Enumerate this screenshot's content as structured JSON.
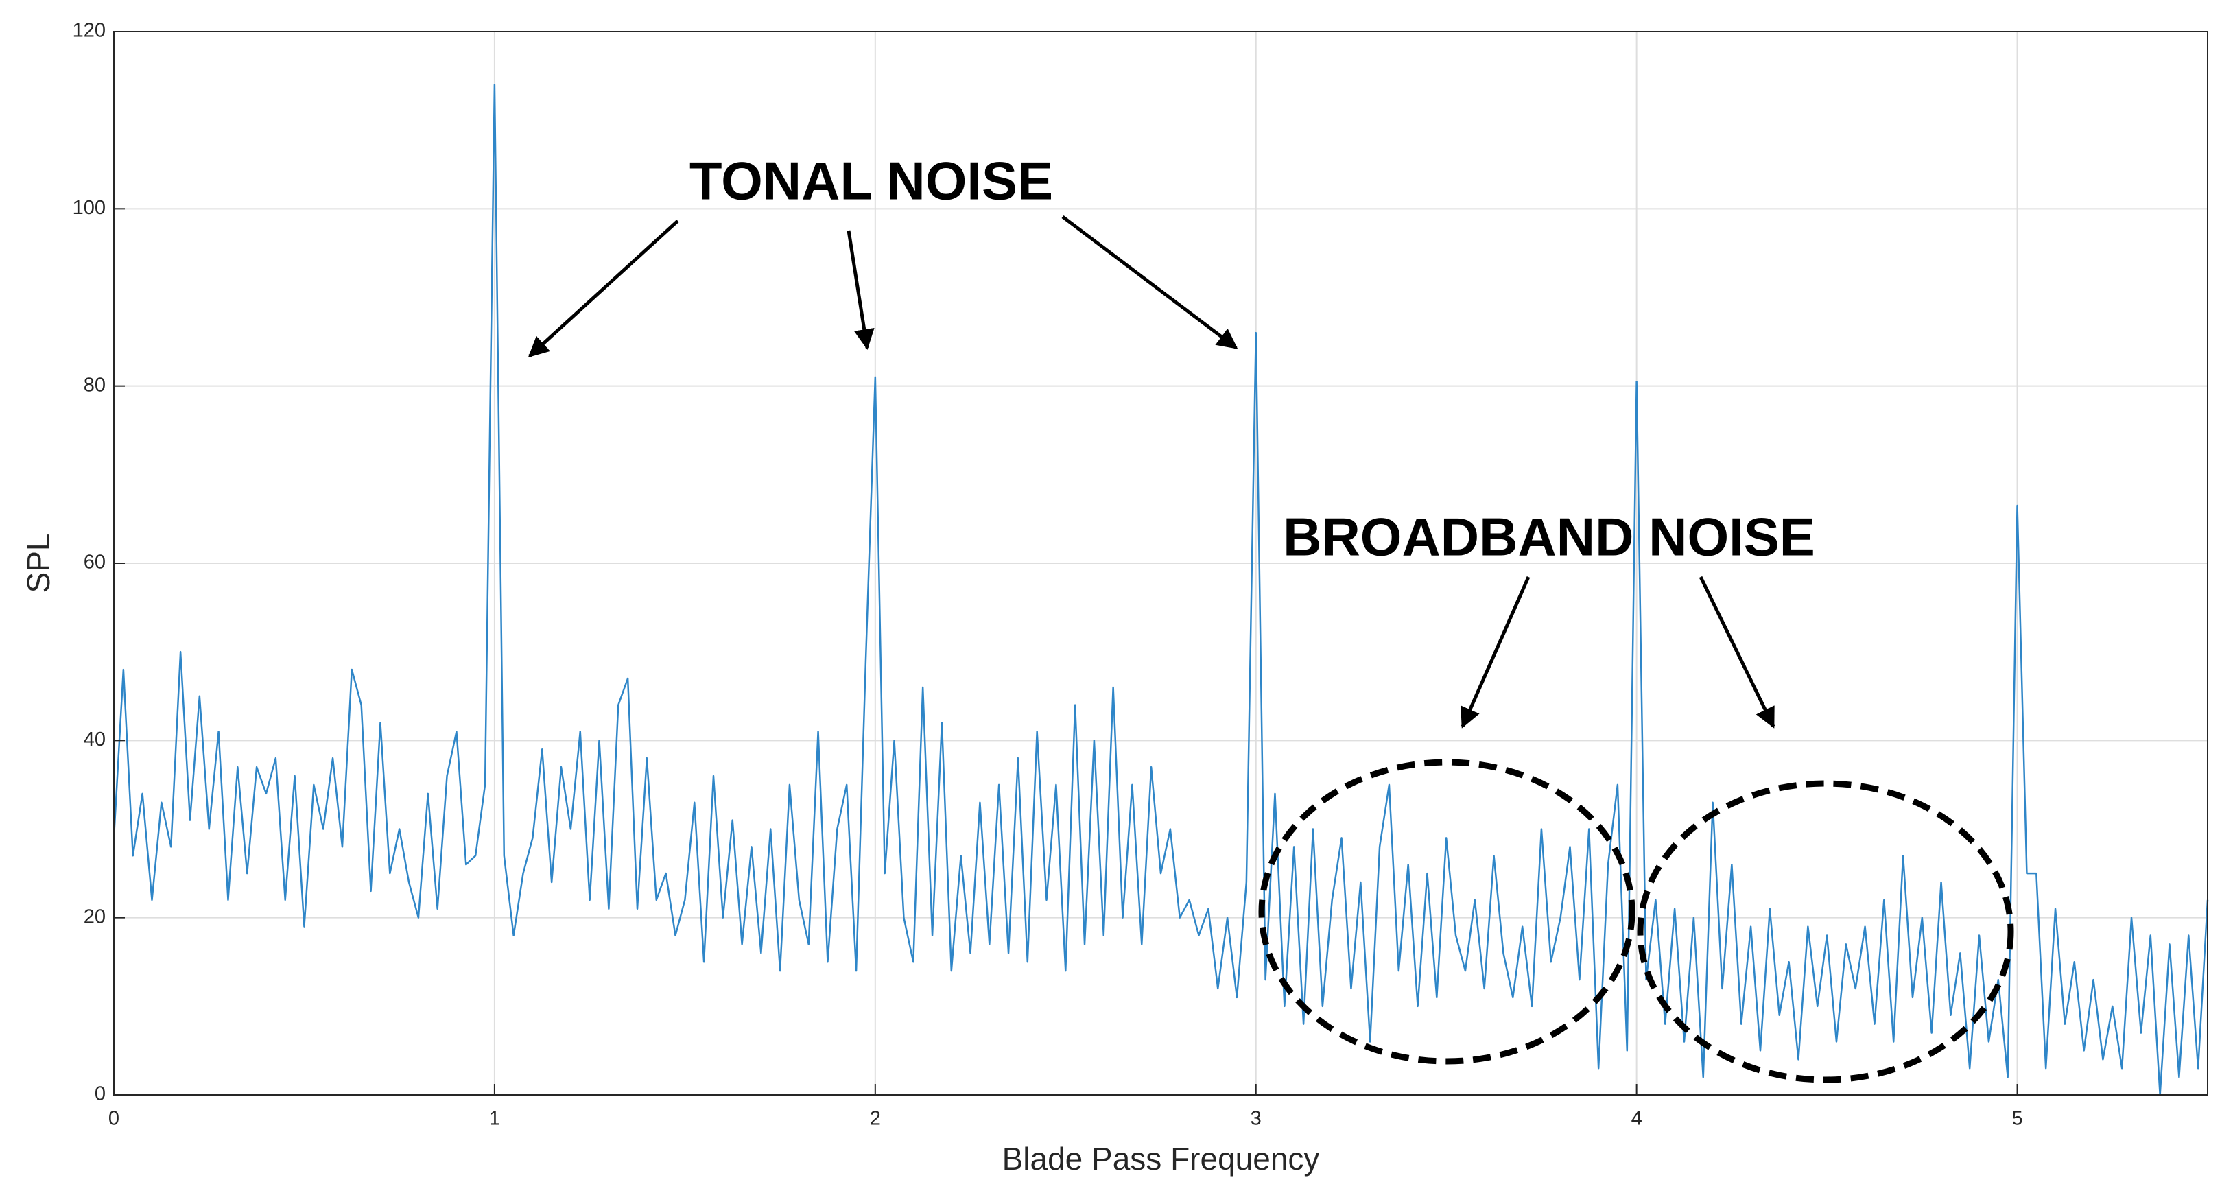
{
  "chart_data": {
    "type": "line",
    "x_label": "Blade Pass Frequency",
    "y_label": "SPL",
    "annotations": [
      "TONAL NOISE",
      "BROADBAND NOISE"
    ],
    "color": "#2f86c8",
    "grid": true,
    "xlim": [
      0,
      5.5
    ],
    "ylim": [
      0,
      120
    ],
    "xticks": [
      0,
      1,
      2,
      3,
      4,
      5
    ],
    "yticks": [
      0,
      20,
      40,
      60,
      80,
      100,
      120
    ],
    "x": [
      0,
      0.025,
      0.05,
      0.075,
      0.1,
      0.125,
      0.15,
      0.175,
      0.2,
      0.225,
      0.25,
      0.275,
      0.3,
      0.325,
      0.35,
      0.375,
      0.4,
      0.425,
      0.45,
      0.475,
      0.5,
      0.525,
      0.55,
      0.575,
      0.6,
      0.625,
      0.65,
      0.675,
      0.7,
      0.725,
      0.75,
      0.775,
      0.8,
      0.825,
      0.85,
      0.875,
      0.9,
      0.925,
      0.95,
      0.975,
      1,
      1.025,
      1.05,
      1.075,
      1.1,
      1.125,
      1.15,
      1.175,
      1.2,
      1.225,
      1.25,
      1.275,
      1.3,
      1.325,
      1.35,
      1.375,
      1.4,
      1.425,
      1.45,
      1.475,
      1.5,
      1.525,
      1.55,
      1.575,
      1.6,
      1.625,
      1.65,
      1.675,
      1.7,
      1.725,
      1.75,
      1.775,
      1.8,
      1.825,
      1.85,
      1.875,
      1.9,
      1.925,
      1.95,
      1.975,
      2,
      2.025,
      2.05,
      2.075,
      2.1,
      2.125,
      2.15,
      2.175,
      2.2,
      2.225,
      2.25,
      2.275,
      2.3,
      2.325,
      2.35,
      2.375,
      2.4,
      2.425,
      2.45,
      2.475,
      2.5,
      2.525,
      2.55,
      2.575,
      2.6,
      2.625,
      2.65,
      2.675,
      2.7,
      2.725,
      2.75,
      2.775,
      2.8,
      2.825,
      2.85,
      2.875,
      2.9,
      2.925,
      2.95,
      2.975,
      3,
      3.025,
      3.05,
      3.075,
      3.1,
      3.125,
      3.15,
      3.175,
      3.2,
      3.225,
      3.25,
      3.275,
      3.3,
      3.325,
      3.35,
      3.375,
      3.4,
      3.425,
      3.45,
      3.475,
      3.5,
      3.525,
      3.55,
      3.575,
      3.6,
      3.625,
      3.65,
      3.675,
      3.7,
      3.725,
      3.75,
      3.775,
      3.8,
      3.825,
      3.85,
      3.875,
      3.9,
      3.925,
      3.95,
      3.975,
      4,
      4.025,
      4.05,
      4.075,
      4.1,
      4.125,
      4.15,
      4.175,
      4.2,
      4.225,
      4.25,
      4.275,
      4.3,
      4.325,
      4.35,
      4.375,
      4.4,
      4.425,
      4.45,
      4.475,
      4.5,
      4.525,
      4.55,
      4.575,
      4.6,
      4.625,
      4.65,
      4.675,
      4.7,
      4.725,
      4.75,
      4.775,
      4.8,
      4.825,
      4.85,
      4.875,
      4.9,
      4.925,
      4.95,
      4.975,
      5,
      5.025,
      5.05,
      5.075,
      5.1,
      5.125,
      5.15,
      5.175,
      5.2,
      5.225,
      5.25,
      5.275,
      5.3,
      5.325,
      5.35,
      5.375,
      5.4,
      5.425,
      5.45,
      5.475,
      5.5
    ],
    "values": [
      29,
      48,
      27,
      34,
      22,
      33,
      28,
      50,
      31,
      45,
      30,
      41,
      22,
      37,
      25,
      37,
      34,
      38,
      22,
      36,
      19,
      35,
      30,
      38,
      28,
      48,
      44,
      23,
      42,
      25,
      30,
      24,
      20,
      34,
      21,
      36,
      41,
      26,
      27,
      35,
      114,
      27,
      18,
      25,
      29,
      39,
      24,
      37,
      30,
      41,
      22,
      40,
      21,
      44,
      47,
      21,
      38,
      22,
      25,
      18,
      22,
      33,
      15,
      36,
      20,
      31,
      17,
      28,
      16,
      30,
      14,
      35,
      22,
      17,
      41,
      15,
      30,
      35,
      14,
      49,
      81,
      25,
      40,
      20,
      15,
      46,
      18,
      42,
      14,
      27,
      16,
      33,
      17,
      35,
      16,
      38,
      15,
      41,
      22,
      35,
      14,
      44,
      17,
      40,
      18,
      46,
      20,
      35,
      17,
      37,
      25,
      30,
      20,
      22,
      18,
      21,
      12,
      20,
      11,
      24,
      86,
      13,
      34,
      10,
      28,
      8,
      30,
      10,
      22,
      29,
      12,
      24,
      6,
      28,
      35,
      14,
      26,
      10,
      25,
      11,
      29,
      18,
      14,
      22,
      12,
      27,
      16,
      11,
      19,
      10,
      30,
      15,
      20,
      28,
      13,
      30,
      3,
      26,
      35,
      5,
      80.5,
      13,
      22,
      8,
      21,
      6,
      20,
      2,
      33,
      12,
      26,
      8,
      19,
      5,
      21,
      9,
      15,
      4,
      19,
      10,
      18,
      6,
      17,
      12,
      19,
      8,
      22,
      6,
      27,
      11,
      20,
      7,
      24,
      9,
      16,
      3,
      18,
      6,
      13,
      2,
      66.5,
      25,
      25,
      3,
      21,
      8,
      15,
      5,
      13,
      4,
      10,
      3,
      20,
      7,
      18,
      0,
      17,
      2,
      18,
      3,
      22
    ]
  }
}
